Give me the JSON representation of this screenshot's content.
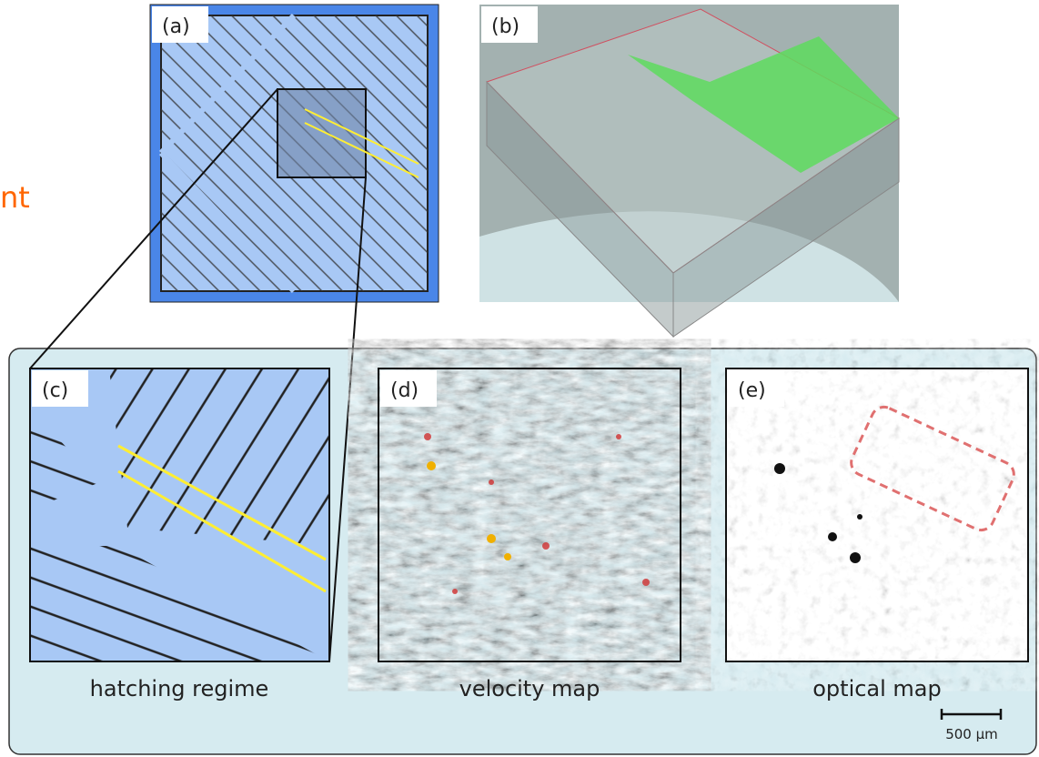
{
  "side_text": "nt",
  "panels": [
    {
      "label": "(a)"
    },
    {
      "label": "(b)"
    },
    {
      "label": "(c)",
      "caption": "hatching regime"
    },
    {
      "label": "(d)",
      "caption": "velocity map"
    },
    {
      "label": "(e)",
      "caption": "optical map"
    }
  ],
  "scale_bar": "500 µm"
}
